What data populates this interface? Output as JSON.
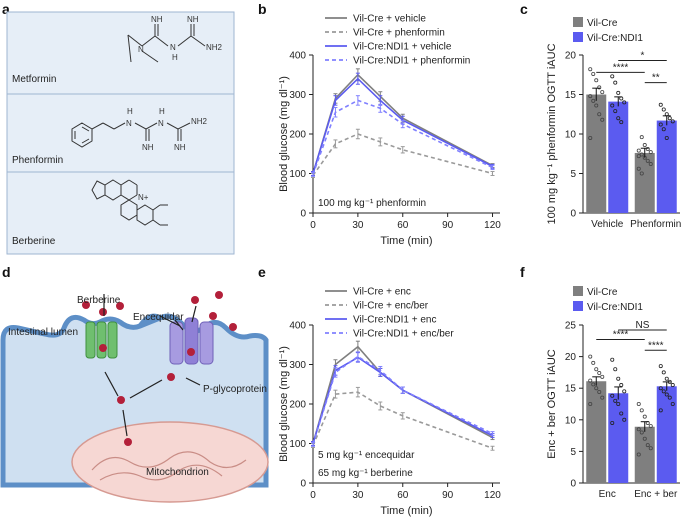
{
  "panels": {
    "a": {
      "label": "a",
      "compounds": [
        {
          "name": "Metformin",
          "atoms": [
            "NH",
            "NH",
            "N",
            "N",
            "H",
            "NH2"
          ]
        },
        {
          "name": "Phenformin",
          "atoms": [
            "H",
            "N",
            "N",
            "H",
            "NH",
            "NH",
            "NH2"
          ]
        },
        {
          "name": "Berberine",
          "atoms": [
            "N+"
          ]
        }
      ]
    },
    "b": {
      "label": "b",
      "annotation": "100 mg kg⁻¹ phenformin"
    },
    "c": {
      "label": "c"
    },
    "d": {
      "label": "d",
      "labels": {
        "berberine": "Berberine",
        "lumen": "Intestinal lumen",
        "encequidar": "Encequidar",
        "pgp": "P-glycoprotein",
        "mito": "Mitochondrion"
      }
    },
    "e": {
      "label": "e",
      "annotation1": "5 mg kg⁻¹ encequidar",
      "annotation2": "65 mg kg⁻¹ berberine"
    },
    "f": {
      "label": "f"
    }
  },
  "colors": {
    "gray": "#7f7f7f",
    "blue": "#5b5bf0",
    "lightgray": "#9a9a9a",
    "lightblue": "#8080ff",
    "panelFill": "#e6eef7",
    "panelBorder": "#9fb6d2"
  },
  "chart_data": [
    {
      "id": "b",
      "type": "line",
      "xlabel": "Time (min)",
      "ylabel": "Blood glucose (mg dl⁻¹)",
      "xlim": [
        0,
        125
      ],
      "ylim": [
        0,
        400
      ],
      "xticks": [
        0,
        30,
        60,
        90,
        120
      ],
      "yticks": [
        0,
        100,
        200,
        300,
        400
      ],
      "x": [
        0,
        15,
        30,
        45,
        60,
        120
      ],
      "legend_position": "top",
      "series": [
        {
          "name": "Vil-Cre + vehicle",
          "color": "#7f7f7f",
          "dash": false,
          "values": [
            100,
            290,
            350,
            295,
            240,
            120
          ],
          "errors": [
            5,
            12,
            15,
            12,
            10,
            5
          ]
        },
        {
          "name": "Vil-Cre + phenformin",
          "color": "#9a9a9a",
          "dash": true,
          "values": [
            95,
            175,
            200,
            180,
            160,
            100
          ],
          "errors": [
            5,
            10,
            12,
            10,
            8,
            5
          ]
        },
        {
          "name": "Vil-Cre:NDI1 + vehicle",
          "color": "#5b5bf0",
          "dash": false,
          "values": [
            100,
            285,
            340,
            285,
            235,
            118
          ],
          "errors": [
            5,
            12,
            14,
            12,
            10,
            5
          ]
        },
        {
          "name": "Vil-Cre:NDI1 + phenformin",
          "color": "#8080ff",
          "dash": true,
          "values": [
            98,
            255,
            285,
            265,
            225,
            115
          ],
          "errors": [
            5,
            12,
            12,
            10,
            9,
            5
          ]
        }
      ]
    },
    {
      "id": "c",
      "type": "bar",
      "ylabel": "100 mg kg⁻¹ phenformin OGTT iAUC",
      "ylim": [
        0,
        20
      ],
      "yticks": [
        0,
        5,
        10,
        15,
        20
      ],
      "categories": [
        "Vehicle",
        "Phenformin"
      ],
      "legend_position": "top",
      "series": [
        {
          "name": "Vil-Cre",
          "color": "#7f7f7f",
          "values": [
            15.0,
            7.6
          ],
          "errors": [
            0.8,
            0.6
          ]
        },
        {
          "name": "Vil-Cre:NDI1",
          "color": "#5b5bf0",
          "values": [
            14.1,
            11.7
          ],
          "errors": [
            0.6,
            0.6
          ]
        }
      ],
      "points": [
        [
          [
            18.2,
            17.6,
            16.8,
            15.9,
            15.3,
            14.8,
            14.2,
            13.6,
            12.5,
            11.8,
            9.5
          ],
          [
            7.9,
            7.4,
            7.0,
            6.6,
            6.2,
            5.6,
            9.6,
            8.6,
            8.1,
            7.7,
            7.2,
            5.0
          ]
        ],
        [
          [
            17.3,
            16.5,
            15.2,
            14.5,
            14.0,
            13.6,
            12.9,
            12.0,
            11.5
          ],
          [
            13.7,
            13.1,
            12.5,
            12.0,
            11.6,
            11.2,
            10.6,
            9.5
          ]
        ]
      ],
      "significance": [
        {
          "text": "****",
          "from": [
            0,
            0
          ],
          "to": [
            1,
            0
          ]
        },
        {
          "text": "*",
          "from": [
            0,
            1
          ],
          "to": [
            1,
            1
          ]
        },
        {
          "text": "**",
          "from": [
            1,
            0
          ],
          "to": [
            1,
            1
          ]
        }
      ]
    },
    {
      "id": "e",
      "type": "line",
      "xlabel": "Time (min)",
      "ylabel": "Blood glucose (mg dl⁻¹)",
      "xlim": [
        0,
        125
      ],
      "ylim": [
        0,
        400
      ],
      "xticks": [
        0,
        30,
        60,
        90,
        120
      ],
      "yticks": [
        0,
        100,
        200,
        300,
        400
      ],
      "x": [
        0,
        15,
        30,
        45,
        60,
        120
      ],
      "legend_position": "top",
      "series": [
        {
          "name": "Vil-Cre + enc",
          "color": "#7f7f7f",
          "dash": false,
          "values": [
            100,
            300,
            345,
            280,
            235,
            115
          ],
          "errors": [
            5,
            12,
            14,
            10,
            8,
            5
          ]
        },
        {
          "name": "Vil-Cre + enc/ber",
          "color": "#9a9a9a",
          "dash": true,
          "values": [
            95,
            225,
            230,
            195,
            170,
            88
          ],
          "errors": [
            5,
            10,
            12,
            10,
            8,
            5
          ]
        },
        {
          "name": "Vil-Cre:NDI1 + enc",
          "color": "#5b5bf0",
          "dash": false,
          "values": [
            100,
            285,
            318,
            280,
            235,
            120
          ],
          "errors": [
            5,
            12,
            12,
            10,
            8,
            5
          ]
        },
        {
          "name": "Vil-Cre:NDI1 + enc/ber",
          "color": "#8080ff",
          "dash": true,
          "values": [
            98,
            280,
            320,
            285,
            235,
            125
          ],
          "errors": [
            5,
            12,
            12,
            10,
            8,
            5
          ]
        }
      ]
    },
    {
      "id": "f",
      "type": "bar",
      "ylabel": "Enc + ber OGTT iAUC",
      "ylim": [
        0,
        25
      ],
      "yticks": [
        0,
        5,
        10,
        15,
        20,
        25
      ],
      "categories": [
        "Enc",
        "Enc + ber"
      ],
      "legend_position": "top",
      "series": [
        {
          "name": "Vil-Cre",
          "color": "#7f7f7f",
          "values": [
            16.1,
            8.9
          ],
          "errors": [
            0.7,
            0.8
          ]
        },
        {
          "name": "Vil-Cre:NDI1",
          "color": "#5b5bf0",
          "values": [
            14.2,
            15.3
          ],
          "errors": [
            1.0,
            0.7
          ]
        }
      ],
      "points": [
        [
          [
            20.0,
            19.0,
            18.0,
            17.4,
            16.8,
            16.2,
            15.6,
            15.0,
            14.4,
            13.5,
            12.5
          ],
          [
            12.5,
            11.5,
            10.5,
            9.5,
            9.0,
            8.5,
            8.0,
            7.0,
            6.0,
            5.5,
            4.5
          ]
        ],
        [
          [
            19.5,
            18.0,
            16.5,
            15.5,
            14.5,
            13.8,
            13.0,
            12.5,
            11.0,
            10.0,
            9.5
          ],
          [
            18.5,
            17.5,
            16.5,
            16.0,
            15.5,
            15.0,
            14.5,
            14.0,
            13.5,
            12.5,
            11.5
          ]
        ]
      ],
      "significance": [
        {
          "text": "****",
          "from": [
            0,
            0
          ],
          "to": [
            1,
            0
          ]
        },
        {
          "text": "NS",
          "from": [
            0,
            1
          ],
          "to": [
            1,
            1
          ]
        },
        {
          "text": "****",
          "from": [
            1,
            0
          ],
          "to": [
            1,
            1
          ]
        }
      ]
    }
  ]
}
